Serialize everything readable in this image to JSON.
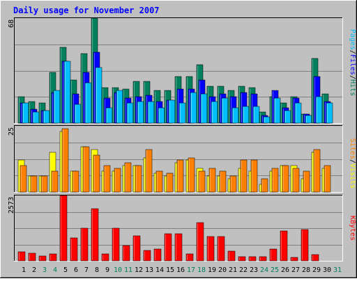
{
  "chart_data": {
    "type": "bar",
    "title": "Daily usage for November 2007",
    "days": [
      "1",
      "2",
      "3",
      "4",
      "5",
      "6",
      "7",
      "8",
      "9",
      "10",
      "11",
      "12",
      "13",
      "14",
      "15",
      "16",
      "17",
      "18",
      "19",
      "20",
      "21",
      "22",
      "23",
      "24",
      "25",
      "26",
      "27",
      "28",
      "29",
      "30",
      "31"
    ],
    "weekend_days": [
      "3",
      "4",
      "10",
      "11",
      "17",
      "18",
      "24",
      "25",
      "31"
    ],
    "panels": [
      {
        "id": "hits-files-pages",
        "ymax_label": "68",
        "ymax": 68,
        "series": [
          {
            "name": "Hits",
            "color": "#00805c",
            "values": [
              17,
              14,
              13,
              33,
              49,
              28,
              45,
              68,
              23,
              23,
              22,
              27,
              27,
              21,
              21,
              30,
              30,
              38,
              24,
              24,
              21,
              24,
              23,
              7,
              17,
              13,
              17,
              6,
              42,
              19,
              null
            ]
          },
          {
            "name": "Files",
            "color": "#0000ff",
            "values": [
              13,
              9,
              8,
              20,
              40,
              19,
              33,
              46,
              16,
              20,
              16,
              17,
              18,
              14,
              15,
              22,
              22,
              28,
              17,
              19,
              17,
              20,
              19,
              5,
              21,
              10,
              16,
              6,
              30,
              14,
              null
            ]
          },
          {
            "name": "Pages",
            "color": "#00bfff",
            "values": [
              13,
              7,
              8,
              21,
              40,
              12,
              26,
              36,
              10,
              21,
              13,
              14,
              14,
              10,
              15,
              13,
              20,
              19,
              14,
              16,
              10,
              11,
              11,
              4,
              16,
              8,
              13,
              5,
              17,
              13,
              null
            ]
          }
        ]
      },
      {
        "id": "visits-sites",
        "ymax_label": "25",
        "ymax": 25,
        "series": [
          {
            "name": "Visits",
            "color": "#ffff00",
            "values": [
              12,
              6,
              6,
              15,
              23,
              8,
              17,
              16,
              8,
              8,
              10,
              10,
              13,
              7,
              6,
              11,
              12,
              9,
              6,
              6,
              5,
              9,
              8,
              3,
              8,
              10,
              10,
              5,
              15,
              9,
              null
            ]
          },
          {
            "name": "Sites",
            "color": "#ff8000",
            "values": [
              10,
              6,
              6,
              8,
              24,
              8,
              17,
              14,
              10,
              9,
              11,
              10,
              16,
              8,
              7,
              12,
              13,
              8,
              9,
              8,
              6,
              12,
              12,
              5,
              9,
              10,
              9,
              8,
              16,
              10,
              null
            ]
          }
        ]
      },
      {
        "id": "kbytes",
        "ymax_label": "2573",
        "ymax": 2573,
        "series": [
          {
            "name": "KBytes",
            "color": "#ff0000",
            "values": [
              360,
              300,
              200,
              280,
              2570,
              900,
              1300,
              2040,
              280,
              1300,
              600,
              990,
              420,
              470,
              1060,
              1060,
              270,
              1500,
              960,
              970,
              380,
              170,
              160,
              160,
              470,
              1190,
              140,
              1230,
              250,
              null,
              null
            ]
          }
        ]
      }
    ]
  },
  "colors": {
    "frame_bg": "#c0c0c0",
    "title": "#0000ff",
    "weekday_label": "#000000",
    "weekend_label": "#00805c",
    "gridline": "#808080"
  },
  "legend": {
    "top": [
      {
        "text": "Pages",
        "color": "#00bfff"
      },
      {
        "text": "/",
        "color": "#000000"
      },
      {
        "text": "Files",
        "color": "#0000ff"
      },
      {
        "text": "/",
        "color": "#000000"
      },
      {
        "text": "Hits",
        "color": "#00805c"
      }
    ],
    "middle": [
      {
        "text": "Sites",
        "color": "#ff8000"
      },
      {
        "text": "/",
        "color": "#000000"
      },
      {
        "text": "Visits",
        "color": "#ffff00"
      }
    ],
    "bottom": [
      {
        "text": "KBytes",
        "color": "#ff0000"
      }
    ]
  }
}
